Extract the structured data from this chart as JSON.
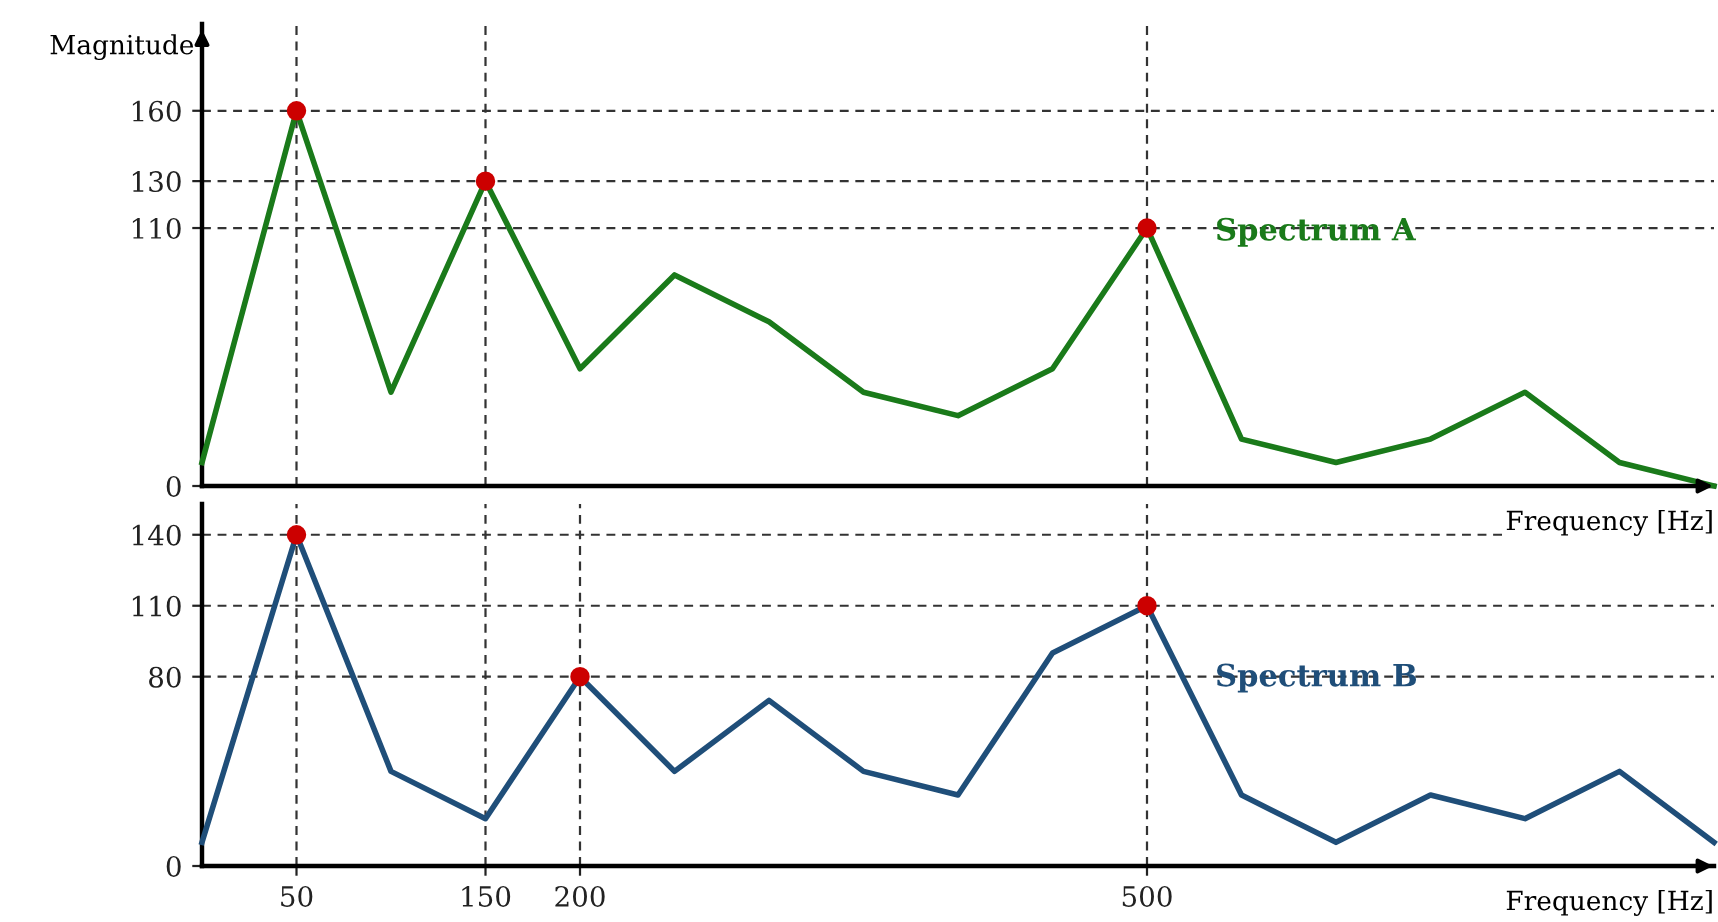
{
  "chart_data": [
    {
      "type": "line",
      "ylabel": "Magnitude",
      "xlabel": "Frequency [Hz]",
      "xlim": [
        0,
        800
      ],
      "ylim": [
        0,
        197
      ],
      "xticks": [
        50,
        150,
        500
      ],
      "yticks": [
        0,
        110,
        130,
        160
      ],
      "tick_labels": "y",
      "x": [
        0,
        50,
        100,
        150,
        200,
        250,
        300,
        350,
        400,
        450,
        500,
        550,
        600,
        650,
        700,
        750,
        800
      ],
      "series": [
        {
          "name": "Spectrum A",
          "color": "#1a7a1a",
          "values": [
            10,
            160,
            40,
            130,
            50,
            90,
            70,
            40,
            30,
            50,
            110,
            20,
            10,
            20,
            40,
            10,
            0
          ]
        },
        {
          "type": "scatter",
          "color": "#cc0000",
          "x": [
            50,
            150,
            500
          ],
          "values": [
            160,
            130,
            110
          ]
        }
      ],
      "ref_lines": [
        {
          "axis": "y",
          "value": 160,
          "color": "#333333",
          "line_style": "dashed"
        },
        {
          "axis": "y",
          "value": 130,
          "color": "#333333",
          "line_style": "dashed"
        },
        {
          "axis": "y",
          "value": 110,
          "color": "#333333",
          "line_style": "dashed"
        },
        {
          "axis": "x",
          "value": 50,
          "color": "#333333",
          "line_style": "dashed"
        },
        {
          "axis": "x",
          "value": 150,
          "color": "#333333",
          "line_style": "dashed"
        },
        {
          "axis": "x",
          "value": 500,
          "color": "#333333",
          "line_style": "dashed"
        }
      ]
    },
    {
      "type": "line",
      "xlabel": "Frequency [Hz]",
      "xlim": [
        0,
        800
      ],
      "ylim": [
        0,
        153
      ],
      "xticks": [
        50,
        150,
        200,
        500
      ],
      "yticks": [
        0,
        80,
        110,
        140
      ],
      "x": [
        0,
        50,
        100,
        150,
        200,
        250,
        300,
        350,
        400,
        450,
        500,
        550,
        600,
        650,
        700,
        750,
        800
      ],
      "series": [
        {
          "name": "Spectrum B",
          "color": "#1f4e79",
          "values": [
            10,
            140,
            40,
            20,
            80,
            40,
            70,
            40,
            30,
            90,
            110,
            30,
            10,
            30,
            20,
            40,
            10
          ]
        },
        {
          "type": "scatter",
          "color": "#cc0000",
          "x": [
            50,
            200,
            500
          ],
          "values": [
            140,
            80,
            110
          ]
        }
      ],
      "ref_lines": [
        {
          "axis": "y",
          "value": 140,
          "color": "#333333",
          "line_style": "dashed"
        },
        {
          "axis": "y",
          "value": 110,
          "color": "#333333",
          "line_style": "dashed"
        },
        {
          "axis": "y",
          "value": 80,
          "color": "#333333",
          "line_style": "dashed"
        },
        {
          "axis": "x",
          "value": 50,
          "color": "#333333",
          "line_style": "dashed"
        },
        {
          "axis": "x",
          "value": 150,
          "color": "#333333",
          "line_style": "dashed"
        },
        {
          "axis": "x",
          "value": 200,
          "color": "#333333",
          "line_style": "dashed"
        },
        {
          "axis": "x",
          "value": 500,
          "color": "#333333",
          "line_style": "dashed"
        }
      ]
    }
  ]
}
